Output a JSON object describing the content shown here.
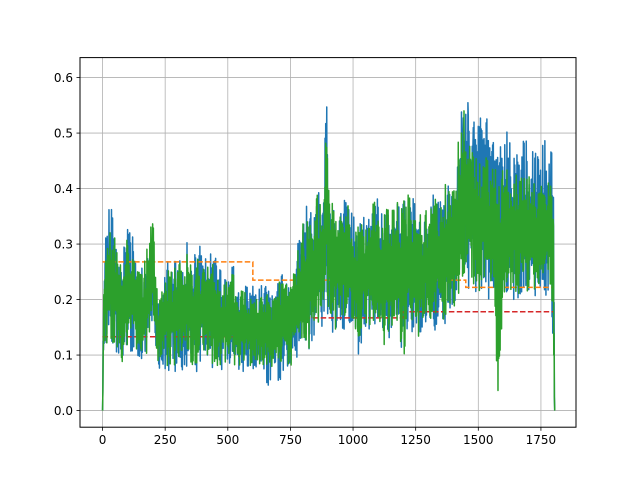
{
  "chart_data": {
    "type": "line",
    "xlim": [
      -90,
      1890
    ],
    "ylim": [
      -0.03,
      0.636
    ],
    "x_ticks": [
      0,
      250,
      500,
      750,
      1000,
      1250,
      1500,
      1750
    ],
    "x_tick_labels": [
      "0",
      "250",
      "500",
      "750",
      "1000",
      "1250",
      "1500",
      "1750"
    ],
    "y_ticks": [
      0.0,
      0.1,
      0.2,
      0.3,
      0.4,
      0.5,
      0.6
    ],
    "y_tick_labels": [
      "0.0",
      "0.1",
      "0.2",
      "0.3",
      "0.4",
      "0.5",
      "0.6"
    ],
    "grid": true,
    "title": "",
    "xlabel": "",
    "ylabel": "",
    "series": [
      {
        "style": "solid",
        "color": "#1f77b4",
        "x": [
          0,
          5,
          10,
          20,
          30,
          40,
          60,
          80,
          100,
          120,
          140,
          160,
          180,
          190,
          200,
          220,
          240,
          260,
          280,
          300,
          320,
          340,
          360,
          380,
          400,
          420,
          440,
          460,
          480,
          500,
          520,
          540,
          560,
          580,
          600,
          620,
          640,
          660,
          680,
          700,
          720,
          740,
          760,
          780,
          800,
          820,
          840,
          860,
          880,
          895,
          900,
          920,
          940,
          960,
          980,
          1000,
          1020,
          1040,
          1060,
          1080,
          1100,
          1120,
          1140,
          1160,
          1180,
          1200,
          1220,
          1240,
          1260,
          1280,
          1300,
          1320,
          1340,
          1360,
          1380,
          1400,
          1420,
          1430,
          1440,
          1450,
          1460,
          1470,
          1480,
          1500,
          1520,
          1540,
          1560,
          1580,
          1600,
          1620,
          1640,
          1660,
          1680,
          1700,
          1720,
          1740,
          1760,
          1780,
          1790,
          1800,
          1805
        ],
        "upper": [
          0.0,
          0.26,
          0.33,
          0.36,
          0.37,
          0.38,
          0.31,
          0.28,
          0.37,
          0.32,
          0.27,
          0.26,
          0.32,
          0.35,
          0.34,
          0.2,
          0.24,
          0.28,
          0.26,
          0.3,
          0.27,
          0.31,
          0.26,
          0.31,
          0.29,
          0.27,
          0.3,
          0.26,
          0.25,
          0.24,
          0.27,
          0.22,
          0.24,
          0.23,
          0.24,
          0.22,
          0.23,
          0.22,
          0.21,
          0.24,
          0.27,
          0.24,
          0.26,
          0.31,
          0.36,
          0.38,
          0.36,
          0.42,
          0.41,
          0.56,
          0.44,
          0.4,
          0.38,
          0.39,
          0.38,
          0.36,
          0.35,
          0.36,
          0.37,
          0.39,
          0.38,
          0.37,
          0.38,
          0.37,
          0.39,
          0.42,
          0.4,
          0.39,
          0.37,
          0.36,
          0.38,
          0.4,
          0.38,
          0.42,
          0.43,
          0.41,
          0.52,
          0.55,
          0.58,
          0.6,
          0.58,
          0.56,
          0.54,
          0.52,
          0.55,
          0.53,
          0.51,
          0.5,
          0.51,
          0.5,
          0.49,
          0.51,
          0.5,
          0.48,
          0.5,
          0.49,
          0.49,
          0.48,
          0.48,
          0.47,
          0.0
        ],
        "lower": [
          0.0,
          0.11,
          0.11,
          0.1,
          0.1,
          0.11,
          0.1,
          0.07,
          0.11,
          0.09,
          0.1,
          0.07,
          0.09,
          0.13,
          0.13,
          0.07,
          0.08,
          0.07,
          0.07,
          0.07,
          0.07,
          0.08,
          0.07,
          0.07,
          0.08,
          0.08,
          0.07,
          0.07,
          0.07,
          0.07,
          0.07,
          0.07,
          0.07,
          0.07,
          0.07,
          0.07,
          0.07,
          0.04,
          0.07,
          0.04,
          0.07,
          0.07,
          0.07,
          0.09,
          0.11,
          0.1,
          0.11,
          0.14,
          0.14,
          0.18,
          0.16,
          0.13,
          0.14,
          0.14,
          0.15,
          0.14,
          0.1,
          0.13,
          0.13,
          0.15,
          0.12,
          0.1,
          0.13,
          0.13,
          0.13,
          0.08,
          0.11,
          0.13,
          0.12,
          0.14,
          0.16,
          0.14,
          0.15,
          0.15,
          0.16,
          0.17,
          0.18,
          0.21,
          0.22,
          0.23,
          0.2,
          0.22,
          0.21,
          0.2,
          0.21,
          0.2,
          0.21,
          0.2,
          0.2,
          0.21,
          0.2,
          0.2,
          0.21,
          0.2,
          0.21,
          0.2,
          0.2,
          0.21,
          0.19,
          0.05,
          0.0
        ]
      },
      {
        "style": "solid",
        "color": "#2ca02c",
        "x": [
          0,
          5,
          10,
          20,
          30,
          40,
          60,
          80,
          100,
          120,
          140,
          160,
          180,
          190,
          200,
          220,
          240,
          260,
          280,
          300,
          320,
          340,
          360,
          380,
          400,
          420,
          440,
          460,
          480,
          500,
          520,
          540,
          560,
          580,
          600,
          620,
          640,
          660,
          680,
          700,
          720,
          740,
          760,
          780,
          800,
          820,
          840,
          860,
          880,
          895,
          900,
          920,
          940,
          960,
          980,
          1000,
          1020,
          1040,
          1060,
          1080,
          1100,
          1120,
          1140,
          1160,
          1180,
          1200,
          1220,
          1240,
          1260,
          1280,
          1300,
          1320,
          1340,
          1360,
          1380,
          1400,
          1420,
          1430,
          1440,
          1450,
          1460,
          1470,
          1480,
          1500,
          1520,
          1540,
          1560,
          1580,
          1600,
          1620,
          1640,
          1660,
          1680,
          1700,
          1720,
          1740,
          1760,
          1780,
          1790,
          1800,
          1805
        ],
        "upper": [
          0.0,
          0.24,
          0.3,
          0.33,
          0.34,
          0.33,
          0.29,
          0.27,
          0.34,
          0.3,
          0.25,
          0.25,
          0.3,
          0.33,
          0.36,
          0.2,
          0.23,
          0.26,
          0.25,
          0.28,
          0.26,
          0.29,
          0.25,
          0.29,
          0.27,
          0.26,
          0.28,
          0.25,
          0.24,
          0.23,
          0.26,
          0.21,
          0.23,
          0.22,
          0.23,
          0.21,
          0.22,
          0.21,
          0.2,
          0.23,
          0.25,
          0.23,
          0.25,
          0.3,
          0.34,
          0.37,
          0.35,
          0.4,
          0.39,
          0.55,
          0.42,
          0.38,
          0.37,
          0.38,
          0.37,
          0.35,
          0.34,
          0.35,
          0.36,
          0.38,
          0.37,
          0.36,
          0.37,
          0.36,
          0.38,
          0.4,
          0.39,
          0.38,
          0.36,
          0.35,
          0.37,
          0.39,
          0.37,
          0.4,
          0.42,
          0.4,
          0.5,
          0.52,
          0.55,
          0.57,
          0.55,
          0.5,
          0.49,
          0.45,
          0.47,
          0.45,
          0.44,
          0.44,
          0.45,
          0.44,
          0.43,
          0.44,
          0.43,
          0.42,
          0.43,
          0.42,
          0.42,
          0.41,
          0.41,
          0.4,
          0.0
        ],
        "lower": [
          0.0,
          0.12,
          0.12,
          0.11,
          0.11,
          0.12,
          0.11,
          0.08,
          0.12,
          0.1,
          0.11,
          0.08,
          0.1,
          0.14,
          0.14,
          0.08,
          0.09,
          0.08,
          0.08,
          0.08,
          0.08,
          0.09,
          0.08,
          0.08,
          0.09,
          0.09,
          0.08,
          0.08,
          0.08,
          0.08,
          0.08,
          0.08,
          0.08,
          0.08,
          0.08,
          0.08,
          0.08,
          0.07,
          0.08,
          0.07,
          0.08,
          0.08,
          0.08,
          0.1,
          0.12,
          0.11,
          0.12,
          0.15,
          0.15,
          0.19,
          0.17,
          0.14,
          0.15,
          0.15,
          0.16,
          0.15,
          0.11,
          0.14,
          0.14,
          0.16,
          0.13,
          0.08,
          0.14,
          0.14,
          0.14,
          0.09,
          0.12,
          0.14,
          0.13,
          0.15,
          0.17,
          0.15,
          0.16,
          0.16,
          0.17,
          0.18,
          0.19,
          0.22,
          0.23,
          0.24,
          0.21,
          0.23,
          0.22,
          0.21,
          0.22,
          0.21,
          0.22,
          0.0,
          0.21,
          0.22,
          0.21,
          0.21,
          0.22,
          0.21,
          0.22,
          0.21,
          0.21,
          0.22,
          0.2,
          0.05,
          0.0
        ]
      },
      {
        "style": "dashed",
        "color": "#ff7f0e",
        "x": [
          0,
          600,
          600,
          1200,
          1200,
          1450,
          1450,
          1800
        ],
        "y": [
          0.268,
          0.268,
          0.235,
          0.235,
          0.235,
          0.235,
          0.222,
          0.222
        ]
      },
      {
        "style": "dashed",
        "color": "#d62728",
        "x": [
          0,
          600,
          600,
          1200,
          1200,
          1800
        ],
        "y": [
          0.133,
          0.133,
          0.167,
          0.167,
          0.178,
          0.178
        ]
      }
    ]
  }
}
